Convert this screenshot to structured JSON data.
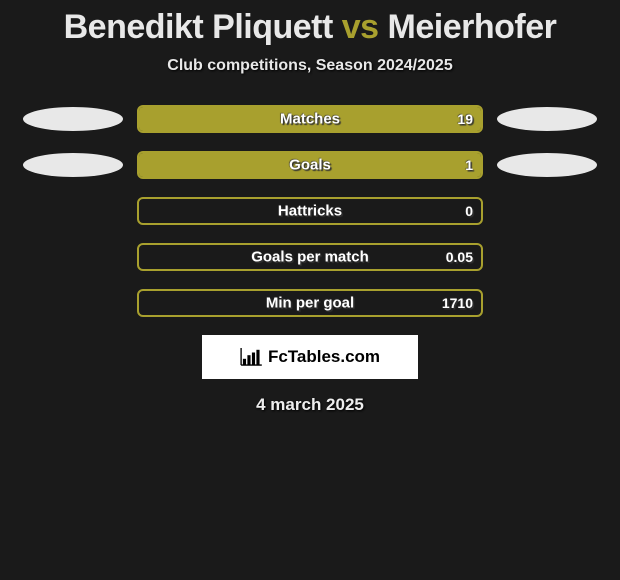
{
  "title": {
    "player1": "Benedikt Pliquett",
    "vs": "vs",
    "player2": "Meierhofer",
    "player1_color": "#e8e8e8",
    "vs_color": "#a8a02e",
    "player2_color": "#e8e8e8"
  },
  "subtitle": "Club competitions, Season 2024/2025",
  "bar_border_color": "#a8a02e",
  "bar_fill_color": "#a8a02e",
  "left_dot_color": "#e8e8e8",
  "right_dot_color": "#e8e8e8",
  "rows": [
    {
      "label": "Matches",
      "value": "19",
      "fill_pct": 100,
      "left_dot": true,
      "right_dot": true
    },
    {
      "label": "Goals",
      "value": "1",
      "fill_pct": 100,
      "left_dot": true,
      "right_dot": true
    },
    {
      "label": "Hattricks",
      "value": "0",
      "fill_pct": 0,
      "left_dot": false,
      "right_dot": false
    },
    {
      "label": "Goals per match",
      "value": "0.05",
      "fill_pct": 0,
      "left_dot": false,
      "right_dot": false
    },
    {
      "label": "Min per goal",
      "value": "1710",
      "fill_pct": 0,
      "left_dot": false,
      "right_dot": false
    }
  ],
  "logo_text": "FcTables.com",
  "date": "4 march 2025",
  "background_color": "#1a1a1a"
}
